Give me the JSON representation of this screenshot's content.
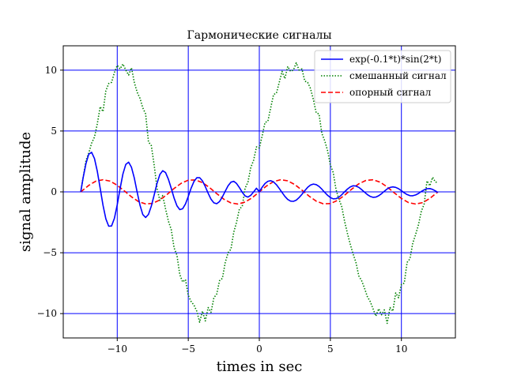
{
  "chart_data": {
    "type": "line",
    "title": "Гармонические сигналы",
    "xlabel": "times in sec",
    "ylabel": "signal amplitude",
    "xlim": [
      -13.8,
      13.8
    ],
    "ylim": [
      -12,
      12
    ],
    "xticks": [
      -10,
      -5,
      0,
      5,
      10
    ],
    "yticks": [
      -10,
      -5,
      0,
      5,
      10
    ],
    "xtick_labels": [
      "−10",
      "−5",
      "0",
      "5",
      "10"
    ],
    "ytick_labels": [
      "−10",
      "−5",
      "0",
      "5",
      "10"
    ],
    "grid": true,
    "grid_color": "#0000ff",
    "legend_position": "upper-right",
    "series": [
      {
        "name": "exp(-0.1*t)*sin(2*t)",
        "color": "#0000ff",
        "style": "solid",
        "x": [
          -12.57,
          -12.4,
          -12.2,
          -12.0,
          -11.8,
          -11.6,
          -11.4,
          -11.2,
          -11.0,
          -10.8,
          -10.6,
          -10.4,
          -10.2,
          -10.0,
          -9.8,
          -9.6,
          -9.4,
          -9.2,
          -9.0,
          -8.8,
          -8.6,
          -8.4,
          -8.2,
          -8.0,
          -7.8,
          -7.6,
          -7.4,
          -7.2,
          -7.0,
          -6.8,
          -6.6,
          -6.4,
          -6.2,
          -6.0,
          -5.8,
          -5.6,
          -5.4,
          -5.2,
          -5.0,
          -4.8,
          -4.6,
          -4.4,
          -4.2,
          -4.0,
          -3.8,
          -3.6,
          -3.4,
          -3.2,
          -3.0,
          -2.8,
          -2.6,
          -2.4,
          -2.2,
          -2.0,
          -1.8,
          -1.6,
          -1.4,
          -1.2,
          -1.0,
          -0.8,
          -0.6,
          -0.4,
          -0.2,
          0.0,
          0.2,
          0.4,
          0.6,
          0.8,
          1.0,
          1.2,
          1.4,
          1.6,
          1.8,
          2.0,
          2.2,
          2.4,
          2.6,
          2.8,
          3.0,
          3.2,
          3.4,
          3.6,
          3.8,
          4.0,
          4.2,
          4.4,
          4.6,
          4.8,
          5.0,
          5.2,
          5.4,
          5.6,
          5.8,
          6.0,
          6.2,
          6.4,
          6.6,
          6.8,
          7.0,
          7.2,
          7.4,
          7.6,
          7.8,
          8.0,
          8.2,
          8.4,
          8.6,
          8.8,
          9.0,
          9.2,
          9.4,
          9.6,
          9.8,
          10.0,
          10.2,
          10.4,
          10.6,
          10.8,
          11.0,
          11.2,
          11.4,
          11.6,
          11.8,
          12.0,
          12.2,
          12.4,
          12.57
        ],
        "y": [
          0.0,
          1.18,
          2.34,
          3.1,
          3.25,
          2.74,
          1.68,
          0.3,
          -1.1,
          -2.22,
          -2.82,
          -2.8,
          -2.17,
          -1.06,
          0.27,
          1.48,
          2.26,
          2.44,
          2.02,
          1.13,
          0.0,
          -1.08,
          -1.86,
          -2.1,
          -1.85,
          -1.17,
          -0.25,
          0.7,
          1.43,
          1.74,
          1.58,
          1.04,
          0.29,
          -0.51,
          -1.14,
          -1.46,
          -1.39,
          -0.99,
          -0.38,
          0.3,
          0.85,
          1.16,
          1.17,
          0.9,
          0.43,
          -0.12,
          -0.6,
          -0.9,
          -0.97,
          -0.79,
          -0.41,
          0.06,
          0.5,
          0.8,
          0.87,
          0.69,
          0.35,
          -0.03,
          -0.33,
          -0.43,
          -0.28,
          0.0,
          0.3,
          0.0,
          0.38,
          0.69,
          0.87,
          0.92,
          0.82,
          0.59,
          0.28,
          -0.05,
          -0.37,
          -0.62,
          -0.76,
          -0.78,
          -0.68,
          -0.47,
          -0.2,
          0.1,
          0.37,
          0.56,
          0.64,
          0.6,
          0.45,
          0.22,
          -0.04,
          -0.28,
          -0.47,
          -0.57,
          -0.56,
          -0.44,
          -0.24,
          0.0,
          0.23,
          0.41,
          0.5,
          0.48,
          0.37,
          0.19,
          -0.02,
          -0.22,
          -0.37,
          -0.45,
          -0.43,
          -0.32,
          -0.15,
          0.05,
          0.24,
          0.36,
          0.41,
          0.37,
          0.26,
          0.1,
          -0.08,
          -0.22,
          -0.31,
          -0.32,
          -0.25,
          -0.13,
          0.03,
          0.17,
          0.26,
          0.27,
          0.2,
          0.08,
          -0.05
        ]
      },
      {
        "name": "смешанный сигнал",
        "color": "#008000",
        "style": "dotted",
        "x": [
          -12.57,
          -12.4,
          -12.2,
          -12.0,
          -11.8,
          -11.6,
          -11.4,
          -11.2,
          -11.0,
          -10.8,
          -10.6,
          -10.4,
          -10.2,
          -10.0,
          -9.8,
          -9.6,
          -9.4,
          -9.2,
          -9.0,
          -8.8,
          -8.6,
          -8.4,
          -8.2,
          -8.0,
          -7.8,
          -7.6,
          -7.4,
          -7.2,
          -7.0,
          -6.8,
          -6.6,
          -6.4,
          -6.2,
          -6.0,
          -5.8,
          -5.6,
          -5.4,
          -5.2,
          -5.0,
          -4.8,
          -4.6,
          -4.4,
          -4.2,
          -4.0,
          -3.8,
          -3.6,
          -3.4,
          -3.2,
          -3.0,
          -2.8,
          -2.6,
          -2.4,
          -2.2,
          -2.0,
          -1.8,
          -1.6,
          -1.4,
          -1.2,
          -1.0,
          -0.8,
          -0.6,
          -0.4,
          -0.2,
          0.0,
          0.2,
          0.4,
          0.6,
          0.8,
          1.0,
          1.2,
          1.4,
          1.6,
          1.8,
          2.0,
          2.2,
          2.4,
          2.6,
          2.8,
          3.0,
          3.2,
          3.4,
          3.6,
          3.8,
          4.0,
          4.2,
          4.4,
          4.6,
          4.8,
          5.0,
          5.2,
          5.4,
          5.6,
          5.8,
          6.0,
          6.2,
          6.4,
          6.6,
          6.8,
          7.0,
          7.2,
          7.4,
          7.6,
          7.8,
          8.0,
          8.2,
          8.4,
          8.6,
          8.8,
          9.0,
          9.2,
          9.4,
          9.6,
          9.8,
          10.0,
          10.2,
          10.4,
          10.6,
          10.8,
          11.0,
          11.2,
          11.4,
          11.6,
          11.8,
          12.0,
          12.2,
          12.4,
          12.57
        ],
        "y": [
          0.0,
          1.2,
          2.6,
          3.2,
          4.0,
          4.5,
          5.6,
          7.0,
          6.6,
          8.3,
          8.9,
          9.0,
          9.8,
          10.4,
          10.1,
          10.5,
          10.0,
          9.6,
          10.2,
          9.0,
          8.2,
          7.7,
          6.9,
          6.4,
          4.1,
          3.8,
          2.2,
          0.3,
          -0.7,
          -0.3,
          -1.4,
          -2.4,
          -3.1,
          -4.6,
          -5.2,
          -6.8,
          -7.4,
          -7.2,
          -8.5,
          -9.0,
          -9.3,
          -9.8,
          -10.7,
          -9.8,
          -10.6,
          -9.5,
          -9.9,
          -8.7,
          -8.4,
          -7.3,
          -7.1,
          -5.8,
          -5.0,
          -4.7,
          -3.3,
          -2.5,
          -1.4,
          -1.2,
          0.3,
          0.8,
          2.0,
          2.6,
          3.7,
          3.6,
          4.6,
          5.7,
          5.8,
          6.9,
          8.0,
          8.1,
          9.0,
          9.9,
          9.3,
          10.3,
          9.9,
          10.0,
          10.6,
          10.0,
          10.1,
          9.1,
          9.0,
          8.5,
          7.6,
          6.5,
          6.4,
          4.8,
          4.2,
          3.4,
          2.2,
          1.6,
          0.2,
          -0.6,
          -1.2,
          -2.4,
          -3.4,
          -4.3,
          -5.1,
          -5.8,
          -6.9,
          -7.3,
          -7.9,
          -8.6,
          -9.0,
          -9.6,
          -10.2,
          -9.6,
          -10.1,
          -9.7,
          -10.8,
          -9.5,
          -9.8,
          -8.3,
          -8.7,
          -7.6,
          -7.5,
          -5.8,
          -5.5,
          -4.2,
          -3.5,
          -2.7,
          -1.6,
          -1.0,
          0.9,
          0.5,
          1.2,
          0.8,
          0.8
        ]
      },
      {
        "name": "опорный сигнал",
        "color": "#ff0000",
        "style": "dashed",
        "x": [
          -12.57,
          -12.0,
          -11.5,
          -11.0,
          -10.5,
          -10.0,
          -9.5,
          -9.0,
          -8.5,
          -8.0,
          -7.5,
          -7.0,
          -6.5,
          -6.0,
          -5.5,
          -5.0,
          -4.5,
          -4.0,
          -3.5,
          -3.0,
          -2.5,
          -2.0,
          -1.5,
          -1.0,
          -0.5,
          0.0,
          0.5,
          1.0,
          1.5,
          2.0,
          2.5,
          3.0,
          3.5,
          4.0,
          4.5,
          5.0,
          5.5,
          6.0,
          6.5,
          7.0,
          7.5,
          8.0,
          8.5,
          9.0,
          9.5,
          10.0,
          10.5,
          11.0,
          11.5,
          12.0,
          12.57
        ],
        "y": [
          0.0,
          0.54,
          0.88,
          1.0,
          0.88,
          0.54,
          0.08,
          -0.41,
          -0.8,
          -0.99,
          -0.94,
          -0.66,
          -0.22,
          0.28,
          0.71,
          0.96,
          0.98,
          0.76,
          0.35,
          -0.14,
          -0.6,
          -0.91,
          -1.0,
          -0.84,
          -0.48,
          0.0,
          0.48,
          0.84,
          1.0,
          0.91,
          0.6,
          0.14,
          -0.35,
          -0.76,
          -0.98,
          -0.96,
          -0.71,
          -0.28,
          0.22,
          0.66,
          0.94,
          0.99,
          0.8,
          0.41,
          -0.08,
          -0.54,
          -0.88,
          -1.0,
          -0.88,
          -0.54,
          0.0
        ]
      }
    ]
  }
}
